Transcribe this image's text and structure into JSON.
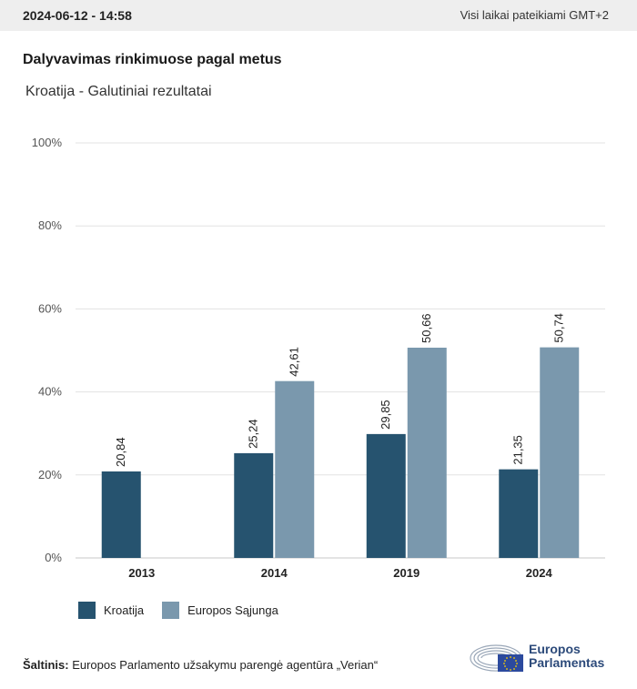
{
  "header": {
    "date": "2024-06-12 - 14:58",
    "timezone_note": "Visi laikai pateikiami GMT+2"
  },
  "title": "Dalyvavimas rinkimuose pagal metus",
  "subtitle": "Kroatija - Galutiniai rezultatai",
  "colors": {
    "series1": "#26536f",
    "series2": "#7a98ad",
    "grid": "#e3e3e3",
    "logo_blue": "#2c4a7a",
    "eu_flag": "#2c4a9e"
  },
  "chart_data": {
    "type": "bar",
    "categories": [
      "2013",
      "2014",
      "2019",
      "2024"
    ],
    "series": [
      {
        "name": "Kroatija",
        "values": [
          20.84,
          25.24,
          29.85,
          21.35
        ]
      },
      {
        "name": "Europos Sąjunga",
        "values": [
          null,
          42.61,
          50.66,
          50.74
        ]
      }
    ],
    "value_labels": [
      [
        "20,84",
        "25,24",
        "29,85",
        "21,35"
      ],
      [
        null,
        "42,61",
        "50,66",
        "50,74"
      ]
    ],
    "y_ticks": [
      "0%",
      "20%",
      "40%",
      "60%",
      "80%",
      "100%"
    ],
    "ylim": [
      0,
      100
    ],
    "grid": true,
    "legend_position": "bottom-left"
  },
  "source": {
    "label": "Šaltinis:",
    "text": " Europos Parlamento užsakymu parengė agentūra „Verian“"
  },
  "logo": {
    "line1": "Europos",
    "line2": "Parlamentas"
  }
}
